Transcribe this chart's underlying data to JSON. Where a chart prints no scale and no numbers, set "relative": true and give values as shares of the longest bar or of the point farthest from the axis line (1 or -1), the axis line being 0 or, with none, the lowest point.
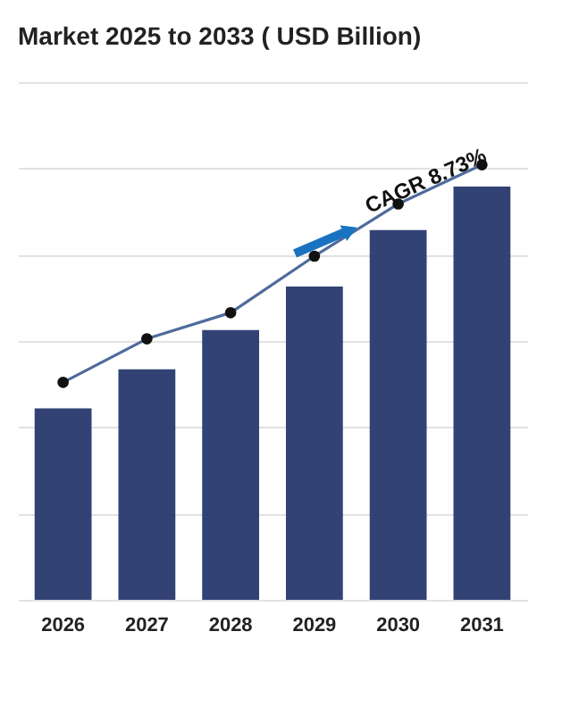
{
  "chart_data": {
    "type": "bar",
    "title": "Market 2025 to 2033 ( USD Billion)",
    "categories": [
      "2026",
      "2027",
      "2028",
      "2029",
      "2030",
      "2031"
    ],
    "relative": true,
    "grid": "y",
    "series": [
      {
        "color": "#27386e",
        "values": [
          0.44,
          0.53,
          0.62,
          0.72,
          0.85,
          0.95
        ]
      },
      {
        "type": "line",
        "color": "#4f6b9c",
        "marker": "circle",
        "values": [
          0.5,
          0.6,
          0.66,
          0.79,
          0.91,
          1.0
        ]
      }
    ],
    "annotations": [
      "CAGR 8.73%"
    ]
  }
}
